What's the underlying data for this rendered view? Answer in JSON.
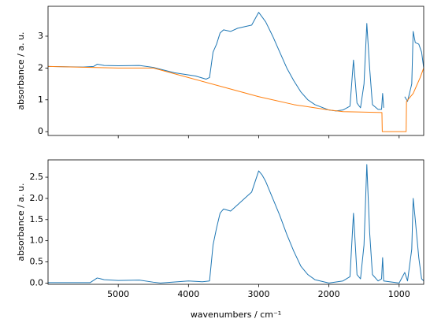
{
  "chart_data": [
    {
      "type": "line",
      "ylabel": "absorbance / a. u.",
      "sharex": true,
      "xlim": [
        6000,
        650
      ],
      "ylim": [
        -0.12,
        3.94
      ],
      "yticks": [
        0,
        1,
        2,
        3
      ],
      "series": [
        {
          "color": "#1f77b4",
          "x": [
            6000,
            5500,
            5350,
            5300,
            5200,
            5000,
            4700,
            4500,
            4200,
            3900,
            3750,
            3700,
            3650,
            3600,
            3550,
            3500,
            3400,
            3300,
            3200,
            3100,
            3000,
            2950,
            2900,
            2800,
            2700,
            2600,
            2500,
            2400,
            2300,
            2200,
            2000,
            1900,
            1800,
            1700,
            1650,
            1600,
            1550,
            1500,
            1460,
            1420,
            1380,
            1300,
            1250,
            1235,
            1220,
            1200,
            950,
            920,
            880,
            820,
            800,
            770,
            720,
            680,
            650
          ],
          "values": [
            2.05,
            2.03,
            2.05,
            2.12,
            2.08,
            2.07,
            2.08,
            2.02,
            1.85,
            1.75,
            1.65,
            1.7,
            2.5,
            2.75,
            3.1,
            3.2,
            3.15,
            3.25,
            3.3,
            3.35,
            3.75,
            3.6,
            3.45,
            3.0,
            2.5,
            2.0,
            1.6,
            1.25,
            1.0,
            0.85,
            0.68,
            0.65,
            0.68,
            0.8,
            2.25,
            0.9,
            0.75,
            1.5,
            3.4,
            2.0,
            0.85,
            0.7,
            0.7,
            1.2,
            0.75,
            null,
            null,
            1.1,
            0.95,
            1.5,
            3.15,
            2.8,
            2.75,
            2.5,
            2.0
          ]
        },
        {
          "color": "#ff7f0e",
          "x": [
            6000,
            5000,
            4500,
            4000,
            3500,
            3000,
            2500,
            2000,
            1800,
            1600,
            1245,
            1240,
            900,
            895,
            800,
            700,
            650
          ],
          "values": [
            2.05,
            2.0,
            2.0,
            1.7,
            1.4,
            1.1,
            0.85,
            0.68,
            0.63,
            0.62,
            0.6,
            0,
            0,
            0.95,
            1.2,
            1.7,
            2.0
          ]
        }
      ]
    },
    {
      "type": "line",
      "ylabel": "absorbance / a. u.",
      "xlabel": "wavenumbers / cm⁻¹",
      "xlim": [
        6000,
        650
      ],
      "xticks": [
        5000,
        4000,
        3000,
        2000,
        1000
      ],
      "ylim": [
        -0.03,
        2.91
      ],
      "yticks": [
        {
          "value": 0,
          "label": "0.0"
        },
        {
          "value": 0.5,
          "label": "0.5"
        },
        {
          "value": 1,
          "label": "1.0"
        },
        {
          "value": 1.5,
          "label": "1.5"
        },
        {
          "value": 2,
          "label": "2.0"
        },
        {
          "value": 2.5,
          "label": "2.5"
        }
      ],
      "series": [
        {
          "color": "#1f77b4",
          "x": [
            6000,
            5400,
            5300,
            5200,
            5000,
            4700,
            4500,
            4400,
            4000,
            3800,
            3700,
            3650,
            3600,
            3550,
            3500,
            3400,
            3300,
            3200,
            3100,
            3000,
            2950,
            2900,
            2800,
            2700,
            2600,
            2500,
            2400,
            2300,
            2200,
            2000,
            1800,
            1700,
            1650,
            1600,
            1550,
            1500,
            1460,
            1420,
            1380,
            1300,
            1250,
            1235,
            1220,
            1000,
            920,
            880,
            820,
            800,
            770,
            720,
            680,
            650
          ],
          "values": [
            0.01,
            0.01,
            0.12,
            0.08,
            0.06,
            0.07,
            0.02,
            0.0,
            0.05,
            0.03,
            0.05,
            0.9,
            1.3,
            1.65,
            1.75,
            1.7,
            1.85,
            2.0,
            2.15,
            2.65,
            2.55,
            2.4,
            2.0,
            1.6,
            1.15,
            0.75,
            0.4,
            0.2,
            0.08,
            0.0,
            0.05,
            0.15,
            1.65,
            0.2,
            0.1,
            0.9,
            2.8,
            1.2,
            0.2,
            0.05,
            0.1,
            0.6,
            0.05,
            0.0,
            0.25,
            0.05,
            0.8,
            2.0,
            1.5,
            0.6,
            0.1,
            0.05
          ]
        }
      ]
    }
  ]
}
